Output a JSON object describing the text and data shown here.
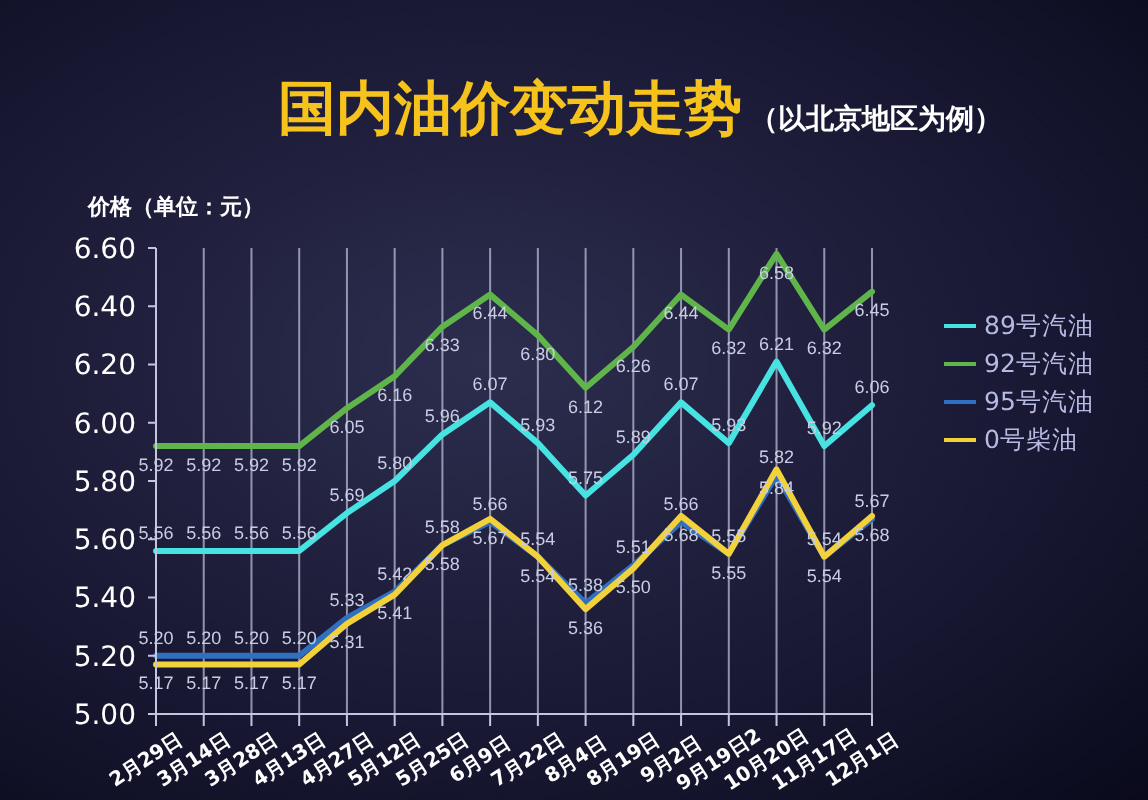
{
  "chart_data": {
    "type": "line",
    "title": "国内油价变动走势",
    "subtitle": "（以北京地区为例）",
    "ylabel": "价格（单位：元）",
    "categories": [
      "2月29日",
      "3月14日",
      "3月28日",
      "4月13日",
      "4月27日",
      "5月12日",
      "5月25日",
      "6月9日",
      "7月22日",
      "8月4日",
      "8月19日",
      "9月2日",
      "9月19日2",
      "10月20日",
      "11月17日",
      "12月1日"
    ],
    "series": [
      {
        "name": "89号汽油",
        "color": "#47e3e3",
        "values": [
          5.56,
          5.56,
          5.56,
          5.56,
          5.69,
          5.8,
          5.96,
          6.07,
          5.93,
          5.75,
          5.89,
          6.07,
          5.93,
          6.21,
          5.92,
          6.06
        ],
        "value_labels": [
          "5.56",
          "5.56",
          "5.56",
          "5.56",
          "5.69",
          "5.80",
          "5.96",
          "6.07",
          "5.93",
          "5.75",
          "5.89",
          "6.07",
          "5.93",
          "6.21",
          "5.92",
          "6.06"
        ]
      },
      {
        "name": "92号汽油",
        "color": "#5fb54a",
        "values": [
          5.92,
          5.92,
          5.92,
          5.92,
          6.05,
          6.16,
          6.33,
          6.44,
          6.3,
          6.12,
          6.26,
          6.44,
          6.32,
          6.58,
          6.32,
          6.45
        ],
        "value_labels": [
          "5.92",
          "5.92",
          "5.92",
          "5.92",
          "6.05",
          "6.16",
          "6.33",
          "6.44",
          "6.30",
          "6.12",
          "6.26",
          "6.44",
          "6.32",
          "6.58",
          "6.32",
          "6.45"
        ]
      },
      {
        "name": "95号汽油",
        "color": "#3070c0",
        "values": [
          5.2,
          5.2,
          5.2,
          5.2,
          5.33,
          5.42,
          5.58,
          5.66,
          5.54,
          5.38,
          5.51,
          5.66,
          5.55,
          5.82,
          5.54,
          5.67
        ],
        "value_labels": [
          "5.20",
          "5.20",
          "5.20",
          "5.20",
          "5.33",
          "5.42",
          "5.58",
          "5.66",
          "5.54",
          "5.38",
          "5.51",
          "5.66",
          "5.55",
          "5.82",
          "5.54",
          "5.67"
        ]
      },
      {
        "name": "0号柴油",
        "color": "#f2d13a",
        "values": [
          5.17,
          5.17,
          5.17,
          5.17,
          5.31,
          5.41,
          5.58,
          5.67,
          5.54,
          5.36,
          5.5,
          5.68,
          5.55,
          5.84,
          5.54,
          5.68
        ],
        "value_labels": [
          "5.17",
          "5.17",
          "5.17",
          "5.17",
          "5.31",
          "5.41",
          "5.58",
          "5.67",
          "5.54",
          "5.36",
          "5.50",
          "5.68",
          "5.55",
          "5.84",
          "5.54",
          "5.68"
        ]
      }
    ],
    "ylim": [
      5,
      6.6
    ],
    "yticks": [
      {
        "value": 5,
        "label": "5.00"
      },
      {
        "value": 5.2,
        "label": "5.20"
      },
      {
        "value": 5.4,
        "label": "5.40"
      },
      {
        "value": 5.6,
        "label": "5.60"
      },
      {
        "value": 5.8,
        "label": "5.80"
      },
      {
        "value": 6,
        "label": "6.00"
      },
      {
        "value": 6.2,
        "label": "6.20"
      },
      {
        "value": 6.4,
        "label": "6.40"
      },
      {
        "value": 6.6,
        "label": "6.60"
      }
    ],
    "grid": "x",
    "legend": "right",
    "marker": "none",
    "line_style": "solid"
  }
}
